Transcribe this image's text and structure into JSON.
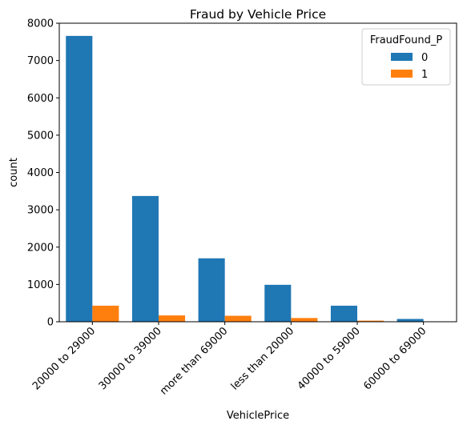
{
  "chart_data": {
    "type": "bar",
    "title": "Fraud by Vehicle Price",
    "xlabel": "VehiclePrice",
    "ylabel": "count",
    "categories": [
      "20000 to 29000",
      "30000 to 39000",
      "more than 69000",
      "less than 20000",
      "40000 to 59000",
      "60000 to 69000"
    ],
    "series": [
      {
        "name": "0",
        "values": [
          7660,
          3370,
          1700,
          990,
          430,
          75
        ],
        "color": "#1f77b4"
      },
      {
        "name": "1",
        "values": [
          430,
          170,
          160,
          100,
          30,
          0
        ],
        "color": "#ff7f0e"
      }
    ],
    "ylim": [
      0,
      8000
    ],
    "yticks": [
      0,
      1000,
      2000,
      3000,
      4000,
      5000,
      6000,
      7000,
      8000
    ],
    "legend": {
      "title": "FraudFound_P",
      "placement": "top-right"
    },
    "grid": false
  }
}
